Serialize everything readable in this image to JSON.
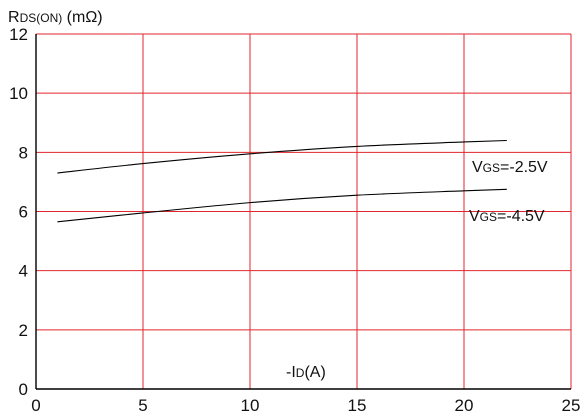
{
  "chart_data": {
    "type": "line",
    "title": "",
    "ylabel": {
      "main": "R",
      "sub": "DS(ON)",
      "unit": " (mΩ)"
    },
    "xlabel": {
      "prefix": "-I",
      "sub": "D",
      "unit": "(A)"
    },
    "xlim": [
      0,
      25
    ],
    "ylim": [
      0,
      12
    ],
    "x_ticks": [
      0,
      5,
      10,
      15,
      20,
      25
    ],
    "y_ticks": [
      0,
      2,
      4,
      6,
      8,
      10,
      12
    ],
    "x_tick_labels": [
      "0",
      "5",
      "10",
      "15",
      "20",
      "25"
    ],
    "y_tick_labels": [
      "0",
      "2",
      "4",
      "6",
      "8",
      "10",
      "12"
    ],
    "grid": true,
    "grid_color": "#e0262e",
    "line_color": "#000000",
    "series": [
      {
        "label": {
          "main": "V",
          "sub": "GS",
          "rest": "=-2.5V"
        },
        "x": [
          1,
          5,
          10,
          15,
          20,
          22
        ],
        "y": [
          7.3,
          7.62,
          7.95,
          8.2,
          8.35,
          8.4
        ]
      },
      {
        "label": {
          "main": "V",
          "sub": "GS",
          "rest": "=-4.5V"
        },
        "x": [
          1,
          5,
          10,
          15,
          20,
          22
        ],
        "y": [
          5.65,
          5.95,
          6.3,
          6.55,
          6.7,
          6.75
        ]
      }
    ]
  }
}
